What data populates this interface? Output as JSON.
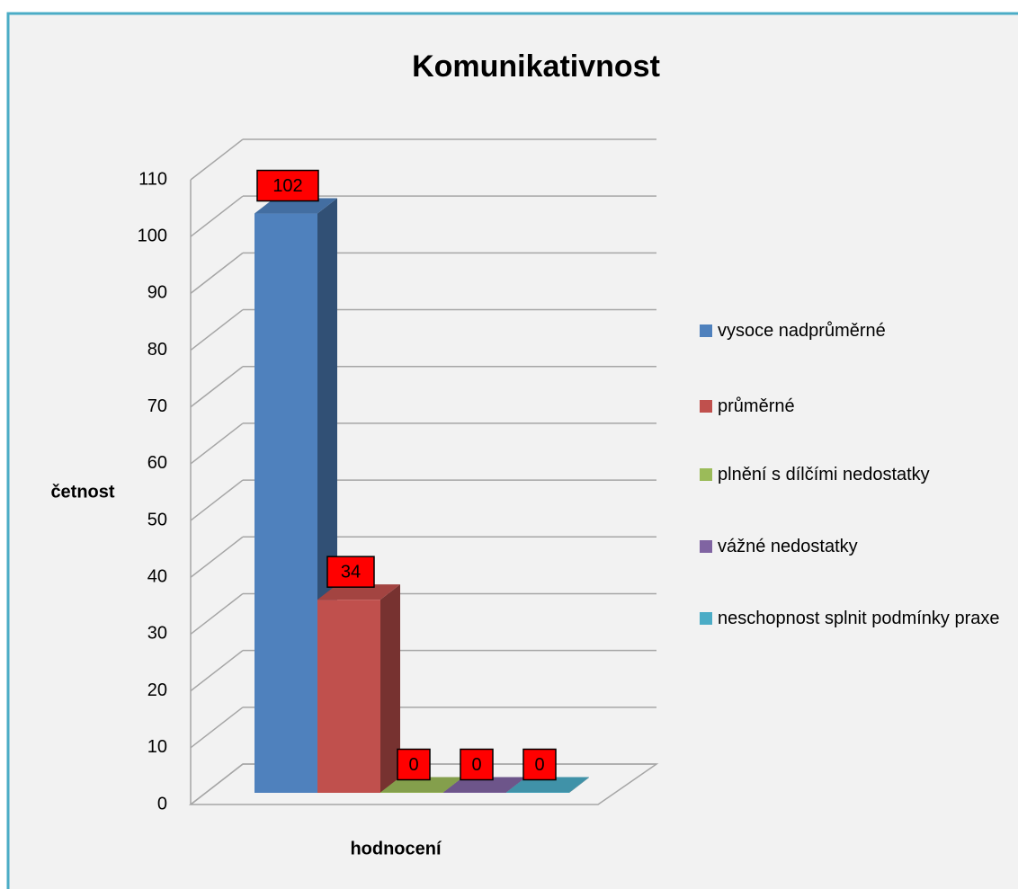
{
  "chart_data": {
    "type": "bar3d",
    "title": "Komunikativnost",
    "y_label": "četnost",
    "x_label": "hodnocení",
    "series": [
      {
        "name": "vysoce nadprůměrné",
        "color": "#4f81bd",
        "values": [
          102
        ]
      },
      {
        "name": "průměrné",
        "color": "#c0504d",
        "values": [
          34
        ]
      },
      {
        "name": "plnění s dílčími nedostatky",
        "color": "#9bbb59",
        "values": [
          0
        ]
      },
      {
        "name": "vážné nedostatky",
        "color": "#8064a2",
        "values": [
          0
        ]
      },
      {
        "name": "neschopnost splnit podmínky praxe",
        "color": "#4bacc6",
        "values": [
          0
        ]
      }
    ],
    "ylim": [
      0,
      110
    ],
    "yticks": [
      0,
      10,
      20,
      30,
      40,
      50,
      60,
      70,
      80,
      90,
      100,
      110
    ],
    "grid": true,
    "legend": "right"
  }
}
